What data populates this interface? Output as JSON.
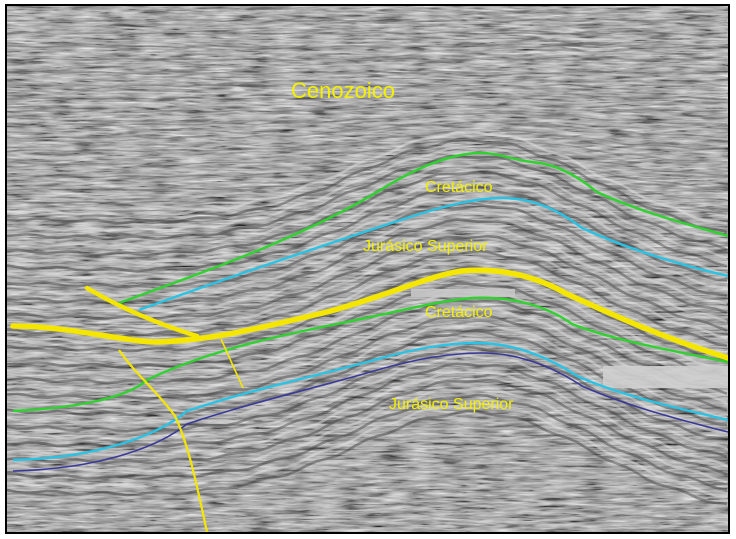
{
  "labels": {
    "cenozoico": "Cenozoico",
    "cretacico_upper": "Cretácico",
    "jurasico_upper": "Jurásico Superior",
    "cretacico_lower": "Cretácico",
    "jurasico_lower": "Jurásico Superior"
  },
  "colors": {
    "label": "#f4f000",
    "fault": "#f5e600",
    "top_cretacico": "#2fd22f",
    "top_jurasico_superior": "#29c3e6",
    "deep_horizon": "#3a3a9a",
    "background": "#8f8f8f",
    "frame": "#000000"
  }
}
